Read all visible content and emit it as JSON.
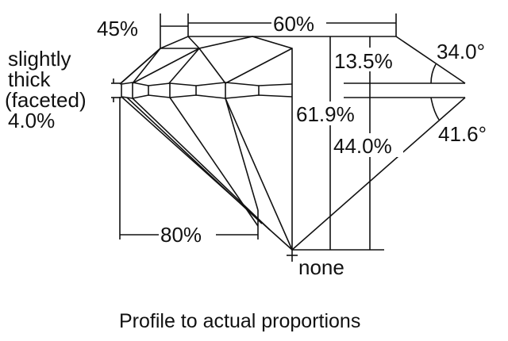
{
  "labels": {
    "crown_angle_pct_left": "45%",
    "table_pct": "60%",
    "girdle_line1": "slightly",
    "girdle_line2": "thick",
    "girdle_line3": "(faceted)",
    "girdle_line4": "4.0%",
    "crown_height": "13.5%",
    "crown_angle": "34.0°",
    "total_depth": "61.9%",
    "pavilion_depth": "44.0%",
    "pavilion_angle": "41.6°",
    "lower_half": "80%",
    "culet": "none"
  },
  "caption": "Profile to actual proportions",
  "colors": {
    "line": "#111111",
    "background": "#ffffff"
  }
}
